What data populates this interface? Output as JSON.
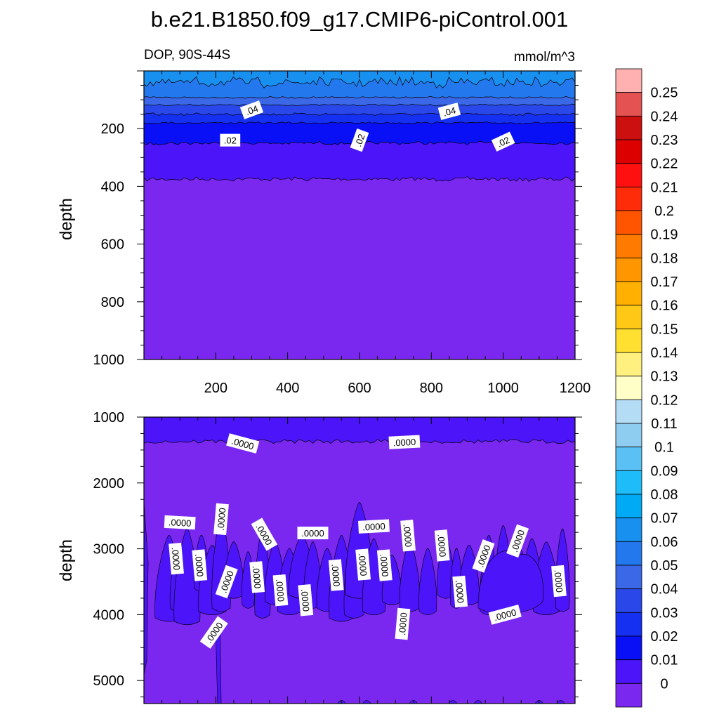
{
  "title": "b.e21.B1850.f09_g17.CMIP6-piControl.001",
  "subtitle_left": "DOP, 90S-44S",
  "subtitle_right": "mmol/m^3",
  "chart_data": [
    {
      "type": "contour",
      "panel": "upper",
      "ylabel": "depth",
      "xlim": [
        0,
        1200
      ],
      "ylim": [
        1000,
        0
      ],
      "x_ticks": [
        200,
        400,
        600,
        800,
        1000,
        1200
      ],
      "y_ticks": [
        200,
        400,
        600,
        800,
        1000
      ],
      "contour_levels_depth": [
        {
          "level": 0.07,
          "depth": 40
        },
        {
          "level": 0.06,
          "depth": 92
        },
        {
          "level": 0.05,
          "depth": 118
        },
        {
          "level": 0.04,
          "depth": 150
        },
        {
          "level": 0.03,
          "depth": 180
        },
        {
          "level": 0.02,
          "depth": 250
        },
        {
          "level": 0.01,
          "depth": 375
        }
      ],
      "contour_labels": [
        {
          "text": ".04",
          "x": 300,
          "y": 135
        },
        {
          "text": ".04",
          "x": 850,
          "y": 140
        },
        {
          "text": ".02",
          "x": 240,
          "y": 240
        },
        {
          "text": ".02",
          "x": 600,
          "y": 240
        },
        {
          "text": ".02",
          "x": 1000,
          "y": 245
        }
      ]
    },
    {
      "type": "contour",
      "panel": "lower",
      "ylabel": "depth",
      "xlim": [
        0,
        1200
      ],
      "ylim": [
        5350,
        1000
      ],
      "y_ticks": [
        1000,
        2000,
        3000,
        4000,
        5000
      ],
      "contour_labels": [
        {
          "text": ".0000",
          "x": 275,
          "y": 1400
        },
        {
          "text": ".0000",
          "x": 725,
          "y": 1380
        },
        {
          "text": ".0000",
          "x": 100,
          "y": 2600
        },
        {
          "text": ".0000",
          "x": 215,
          "y": 2550
        },
        {
          "text": ".0000",
          "x": 335,
          "y": 2780
        },
        {
          "text": ".0000",
          "x": 470,
          "y": 2760
        },
        {
          "text": ".0000",
          "x": 640,
          "y": 2660
        },
        {
          "text": ".0000",
          "x": 735,
          "y": 2800
        },
        {
          "text": ".0000",
          "x": 830,
          "y": 2950
        },
        {
          "text": ".0000",
          "x": 1040,
          "y": 2880
        },
        {
          "text": ".0000",
          "x": 90,
          "y": 3150
        },
        {
          "text": ".0000",
          "x": 155,
          "y": 3250
        },
        {
          "text": ".0000",
          "x": 230,
          "y": 3500
        },
        {
          "text": ".0000",
          "x": 315,
          "y": 3430
        },
        {
          "text": ".0000",
          "x": 380,
          "y": 3630
        },
        {
          "text": ".0000",
          "x": 450,
          "y": 3780
        },
        {
          "text": ".0000",
          "x": 535,
          "y": 3400
        },
        {
          "text": ".0000",
          "x": 610,
          "y": 3240
        },
        {
          "text": ".0000",
          "x": 670,
          "y": 3250
        },
        {
          "text": ".0000",
          "x": 720,
          "y": 4140
        },
        {
          "text": ".0000",
          "x": 880,
          "y": 3650
        },
        {
          "text": ".0000",
          "x": 945,
          "y": 3110
        },
        {
          "text": ".0000",
          "x": 1005,
          "y": 4000
        },
        {
          "text": ".0000",
          "x": 1155,
          "y": 3490
        },
        {
          "text": ".0000",
          "x": 195,
          "y": 4270
        }
      ]
    }
  ],
  "colorbar": {
    "labels": [
      "0.25",
      "0.24",
      "0.23",
      "0.22",
      "0.21",
      "0.2",
      "0.19",
      "0.18",
      "0.17",
      "0.16",
      "0.15",
      "0.14",
      "0.13",
      "0.12",
      "0.11",
      "0.1",
      "0.09",
      "0.08",
      "0.07",
      "0.06",
      "0.05",
      "0.04",
      "0.03",
      "0.02",
      "0.01",
      "0"
    ],
    "colors": [
      "#FFB0B0",
      "#E45252",
      "#CC1010",
      "#DC0000",
      "#FF1010",
      "#FF2C0A",
      "#FF5500",
      "#FF7A00",
      "#FF9600",
      "#FFB000",
      "#FFC816",
      "#FFE030",
      "#FFF080",
      "#FFFFC8",
      "#B4DCF4",
      "#8ECCF0",
      "#5BC0F4",
      "#1EBCF8",
      "#00AAF5",
      "#1890EF",
      "#2478EE",
      "#3A68E6",
      "#2A48EA",
      "#1530F0",
      "#0A10F6",
      "#4C14F8",
      "#7A28F0"
    ]
  }
}
